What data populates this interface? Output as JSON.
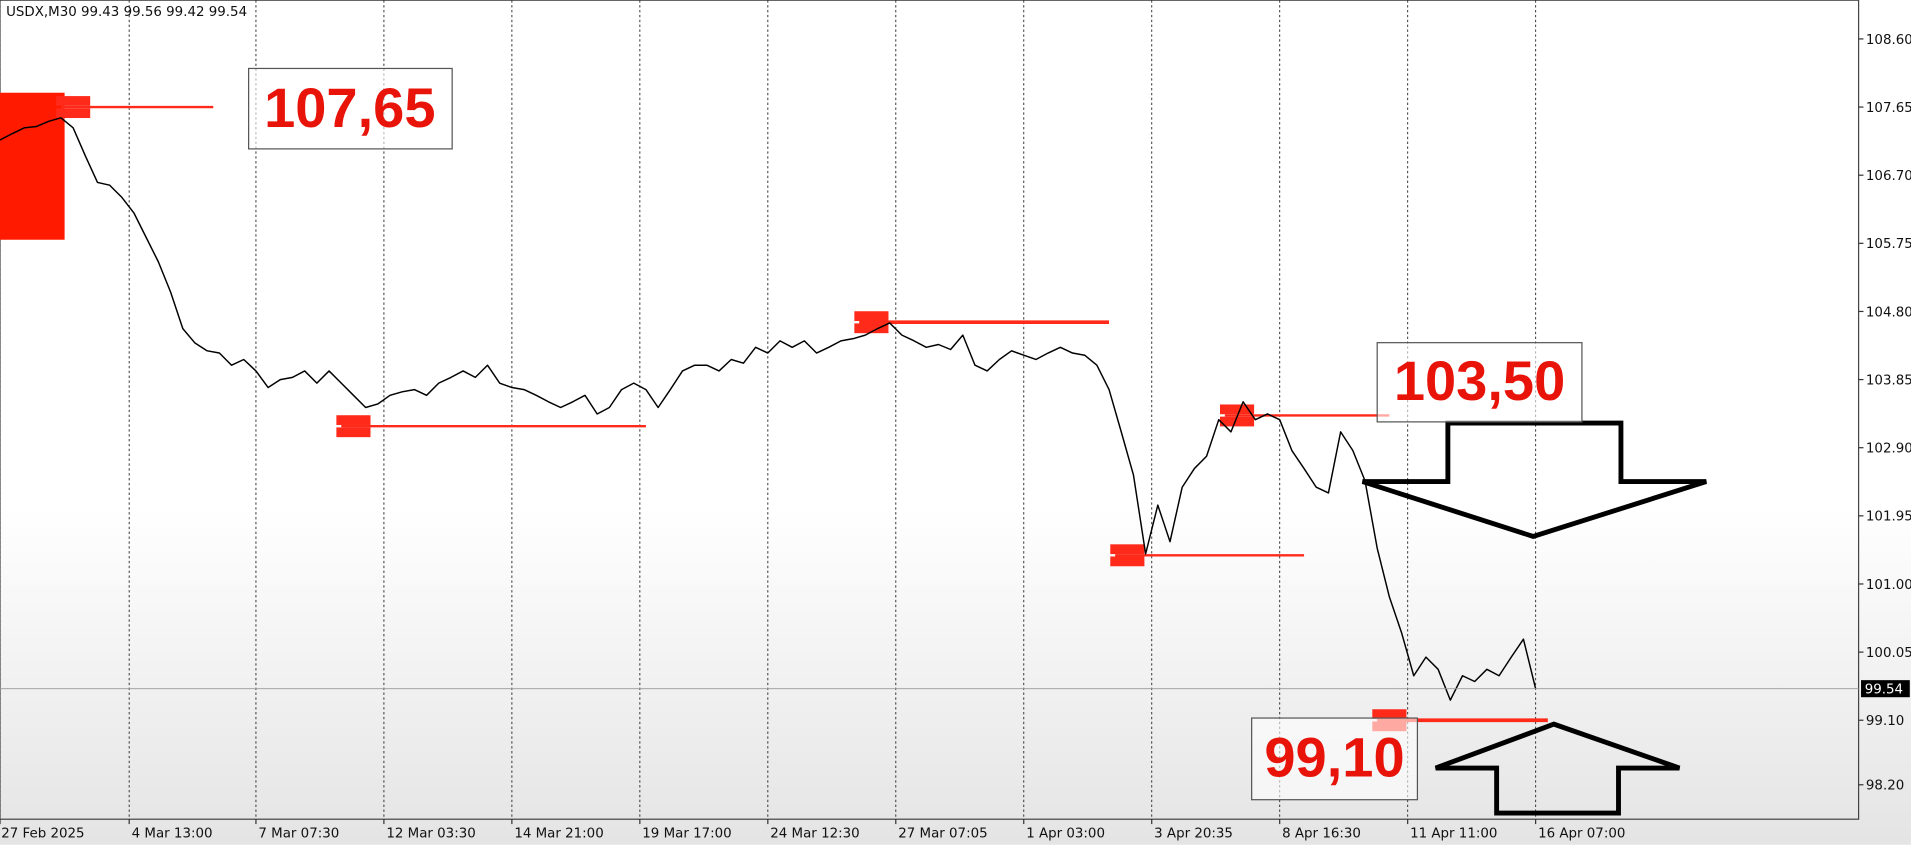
{
  "chart_data": {
    "type": "line",
    "title": "USDX,M30  99.43 99.56 99.42 99.54",
    "series": [
      {
        "color": "#000000",
        "values": [
          107.19,
          107.28,
          107.36,
          107.38,
          107.45,
          107.5,
          107.36,
          106.97,
          106.6,
          106.56,
          106.39,
          106.17,
          105.83,
          105.49,
          105.07,
          104.56,
          104.36,
          104.25,
          104.22,
          104.05,
          104.13,
          103.97,
          103.74,
          103.85,
          103.88,
          103.97,
          103.8,
          103.97,
          103.8,
          103.63,
          103.46,
          103.51,
          103.63,
          103.68,
          103.71,
          103.63,
          103.8,
          103.88,
          103.97,
          103.88,
          104.05,
          103.8,
          103.74,
          103.71,
          103.63,
          103.54,
          103.46,
          103.54,
          103.63,
          103.37,
          103.46,
          103.71,
          103.8,
          103.71,
          103.46,
          103.71,
          103.97,
          104.05,
          104.05,
          103.97,
          104.13,
          104.08,
          104.3,
          104.22,
          104.39,
          104.3,
          104.39,
          104.22,
          104.3,
          104.39,
          104.42,
          104.47,
          104.56,
          104.64,
          104.47,
          104.39,
          104.3,
          104.34,
          104.27,
          104.47,
          104.05,
          103.97,
          104.13,
          104.25,
          104.19,
          104.13,
          104.22,
          104.3,
          104.22,
          104.19,
          104.05,
          103.71,
          103.12,
          102.52,
          101.42,
          102.1,
          101.59,
          102.35,
          102.61,
          102.78,
          103.29,
          103.12,
          103.54,
          103.29,
          103.37,
          103.29,
          102.86,
          102.61,
          102.35,
          102.27,
          103.12,
          102.86,
          102.44,
          101.5,
          100.82,
          100.32,
          99.72,
          99.98,
          99.81,
          99.38,
          99.72,
          99.64,
          99.81,
          99.72,
          99.98,
          100.23,
          99.54
        ]
      }
    ],
    "xlim": [
      0,
      152.5
    ],
    "xticks": [
      {
        "value": 0,
        "label": "27 Feb 2025"
      },
      {
        "value": 10.6,
        "label": "4 Mar 13:00"
      },
      {
        "value": 21.0,
        "label": "7 Mar 07:30"
      },
      {
        "value": 31.5,
        "label": "12 Mar 03:30"
      },
      {
        "value": 42.0,
        "label": "14 Mar 21:00"
      },
      {
        "value": 52.5,
        "label": "19 Mar 17:00"
      },
      {
        "value": 63.0,
        "label": "24 Mar 12:30"
      },
      {
        "value": 73.5,
        "label": "27 Mar 07:05"
      },
      {
        "value": 84.0,
        "label": "1 Apr 03:00"
      },
      {
        "value": 94.5,
        "label": "3 Apr 20:35"
      },
      {
        "value": 105.0,
        "label": "8 Apr 16:30"
      },
      {
        "value": 115.5,
        "label": "11 Apr 11:00"
      },
      {
        "value": 126.0,
        "label": "16 Apr 07:00"
      }
    ],
    "ylim": [
      97.72,
      109.14
    ],
    "yticks": [
      {
        "value": 98.2,
        "label": "98.20"
      },
      {
        "value": 99.1,
        "label": "99.10"
      },
      {
        "value": 100.05,
        "label": "100.05"
      },
      {
        "value": 101,
        "label": "101.00"
      },
      {
        "value": 101.95,
        "label": "101.95"
      },
      {
        "value": 102.9,
        "label": "102.90"
      },
      {
        "value": 103.85,
        "label": "103.85"
      },
      {
        "value": 104.8,
        "label": "104.80"
      },
      {
        "value": 105.75,
        "label": "105.75"
      },
      {
        "value": 106.7,
        "label": "106.70"
      },
      {
        "value": 107.65,
        "label": "107.65"
      },
      {
        "value": 108.6,
        "label": "108.60"
      }
    ],
    "xgrid": true,
    "level_color": "#ff2a1a",
    "levels": [
      {
        "value": 107.65,
        "from": 5.0,
        "to": 17.5
      },
      {
        "value": 103.2,
        "from": 28.0,
        "to": 53.0
      },
      {
        "value": 104.65,
        "from": 70.5,
        "to": 91.0
      },
      {
        "value": 101.4,
        "from": 91.5,
        "to": 107.0
      },
      {
        "value": 103.35,
        "from": 100.5,
        "to": 114.0
      },
      {
        "value": 99.1,
        "from": 113.0,
        "to": 127.0
      }
    ],
    "zones": [
      {
        "from": 0,
        "to": 5.3,
        "low": 105.8,
        "high": 107.85
      }
    ],
    "annotations": [
      "107,65",
      "103,50",
      "99,10"
    ]
  }
}
